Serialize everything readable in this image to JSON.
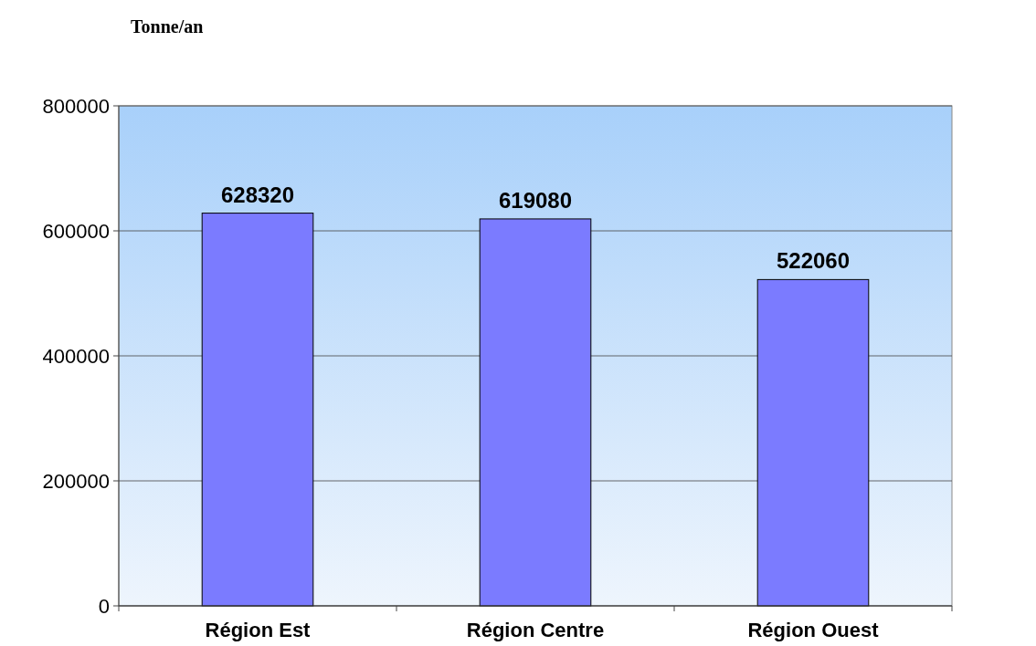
{
  "chart_data": {
    "type": "bar",
    "ylabel": "Tonne/an",
    "categories": [
      "Région Est",
      "Région Centre",
      "Région Ouest"
    ],
    "values": [
      628320,
      619080,
      522060
    ],
    "color": "#7b7bff",
    "ylim": [
      0,
      800000
    ],
    "yticks": [
      0,
      200000,
      400000,
      600000,
      800000
    ],
    "grid": "y",
    "data_labels": true
  }
}
